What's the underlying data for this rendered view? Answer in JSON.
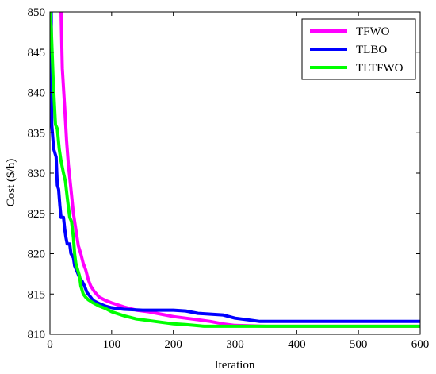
{
  "chart_data": {
    "type": "line",
    "title": "",
    "xlabel": "Iteration",
    "ylabel": "Cost ($/h)",
    "xlim": [
      0,
      600
    ],
    "ylim": [
      810,
      850
    ],
    "x_ticks": [
      0,
      100,
      200,
      300,
      400,
      500,
      600
    ],
    "y_ticks": [
      810,
      815,
      820,
      825,
      830,
      835,
      840,
      845,
      850
    ],
    "grid": false,
    "legend_position": "top-right",
    "series": [
      {
        "name": "TFWO",
        "color": "#ff00ff",
        "points": [
          [
            18,
            850
          ],
          [
            20,
            843
          ],
          [
            24,
            838
          ],
          [
            27,
            834
          ],
          [
            30,
            831
          ],
          [
            34,
            828
          ],
          [
            38,
            825
          ],
          [
            42,
            823
          ],
          [
            46,
            821
          ],
          [
            50,
            820
          ],
          [
            54,
            818.8
          ],
          [
            58,
            818
          ],
          [
            62,
            816.8
          ],
          [
            66,
            816
          ],
          [
            72,
            815.3
          ],
          [
            80,
            814.6
          ],
          [
            90,
            814.2
          ],
          [
            100,
            813.9
          ],
          [
            120,
            813.4
          ],
          [
            140,
            813
          ],
          [
            160,
            812.8
          ],
          [
            180,
            812.5
          ],
          [
            200,
            812.2
          ],
          [
            220,
            812
          ],
          [
            240,
            811.8
          ],
          [
            260,
            811.6
          ],
          [
            280,
            811.3
          ],
          [
            300,
            811.1
          ],
          [
            350,
            811
          ],
          [
            400,
            811
          ],
          [
            500,
            811
          ],
          [
            600,
            811
          ]
        ]
      },
      {
        "name": "TLBO",
        "color": "#0000ff",
        "points": [
          [
            0,
            845
          ],
          [
            2,
            850
          ],
          [
            3,
            836
          ],
          [
            6,
            833
          ],
          [
            10,
            832
          ],
          [
            12,
            828.5
          ],
          [
            14,
            828
          ],
          [
            16,
            826
          ],
          [
            18,
            824.5
          ],
          [
            22,
            824.5
          ],
          [
            24,
            823
          ],
          [
            26,
            822
          ],
          [
            28,
            821.2
          ],
          [
            32,
            821.2
          ],
          [
            34,
            820
          ],
          [
            38,
            819.5
          ],
          [
            40,
            818.5
          ],
          [
            44,
            817.8
          ],
          [
            48,
            817
          ],
          [
            52,
            816.6
          ],
          [
            56,
            816
          ],
          [
            60,
            815.2
          ],
          [
            66,
            814.6
          ],
          [
            70,
            814.2
          ],
          [
            80,
            813.8
          ],
          [
            90,
            813.5
          ],
          [
            100,
            813.3
          ],
          [
            120,
            813.1
          ],
          [
            150,
            813
          ],
          [
            180,
            813
          ],
          [
            200,
            813
          ],
          [
            220,
            812.9
          ],
          [
            240,
            812.6
          ],
          [
            280,
            812.4
          ],
          [
            300,
            812
          ],
          [
            320,
            811.8
          ],
          [
            340,
            811.6
          ],
          [
            400,
            811.6
          ],
          [
            500,
            811.6
          ],
          [
            600,
            811.6
          ]
        ]
      },
      {
        "name": "TLTFWO",
        "color": "#00ff00",
        "points": [
          [
            0,
            850
          ],
          [
            2,
            848
          ],
          [
            5,
            842
          ],
          [
            7,
            839
          ],
          [
            9,
            836
          ],
          [
            12,
            835.5
          ],
          [
            15,
            833
          ],
          [
            18,
            831.5
          ],
          [
            22,
            830
          ],
          [
            25,
            829
          ],
          [
            28,
            827
          ],
          [
            32,
            824.5
          ],
          [
            35,
            824
          ],
          [
            38,
            822
          ],
          [
            40,
            820
          ],
          [
            42,
            818.8
          ],
          [
            45,
            818
          ],
          [
            48,
            817.2
          ],
          [
            50,
            816
          ],
          [
            54,
            815
          ],
          [
            58,
            814.6
          ],
          [
            62,
            814.3
          ],
          [
            70,
            813.9
          ],
          [
            80,
            813.5
          ],
          [
            90,
            813.2
          ],
          [
            100,
            812.8
          ],
          [
            120,
            812.3
          ],
          [
            140,
            811.9
          ],
          [
            160,
            811.7
          ],
          [
            180,
            811.5
          ],
          [
            200,
            811.3
          ],
          [
            220,
            811.2
          ],
          [
            250,
            811
          ],
          [
            300,
            811
          ],
          [
            400,
            811
          ],
          [
            500,
            811
          ],
          [
            600,
            811
          ]
        ]
      }
    ]
  }
}
